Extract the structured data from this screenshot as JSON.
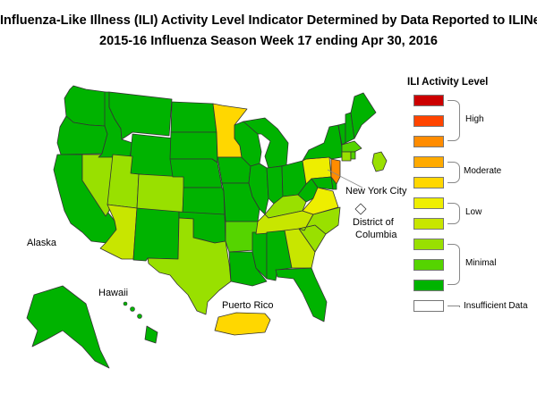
{
  "title_line1": "Influenza-Like Illness (ILI) Activity Level Indicator Determined by Data Reported to ILINet",
  "title_line2": "2015-16  Influenza Season Week  17 ending Apr 30, 2016",
  "legend": {
    "title": "ILI Activity Level",
    "levels": [
      {
        "level": 10,
        "color": "#cc0000"
      },
      {
        "level": 9,
        "color": "#ff4400"
      },
      {
        "level": 8,
        "color": "#ff8c00"
      },
      {
        "level": 7,
        "color": "#ffaa00"
      },
      {
        "level": 6,
        "color": "#ffd700"
      },
      {
        "level": 5,
        "color": "#eeee00"
      },
      {
        "level": 4,
        "color": "#c8e600"
      },
      {
        "level": 3,
        "color": "#99e000"
      },
      {
        "level": 2,
        "color": "#55d400"
      },
      {
        "level": 1,
        "color": "#00b300"
      },
      {
        "level": 0,
        "color": "#ffffff"
      }
    ],
    "groups": {
      "high": "High",
      "moderate": "Moderate",
      "low": "Low",
      "minimal": "Minimal",
      "insufficient": "Insufficient Data"
    }
  },
  "map_labels": {
    "alaska": "Alaska",
    "hawaii": "Hawaii",
    "puerto_rico": "Puerto Rico",
    "nyc": "New York City",
    "dc_line1": "District of",
    "dc_line2": "Columbia"
  },
  "regions": [
    {
      "name": "Minnesota",
      "level": 6
    },
    {
      "name": "Pennsylvania",
      "level": 5
    },
    {
      "name": "New Jersey",
      "level": 8
    },
    {
      "name": "Virginia",
      "level": 5
    },
    {
      "name": "Puerto Rico",
      "level": 6
    },
    {
      "name": "Nevada",
      "level": 3
    },
    {
      "name": "Utah",
      "level": 3
    },
    {
      "name": "Colorado",
      "level": 3
    },
    {
      "name": "Arizona",
      "level": 4
    },
    {
      "name": "Texas",
      "level": 3
    },
    {
      "name": "Georgia",
      "level": 4
    },
    {
      "name": "South Carolina",
      "level": 3
    },
    {
      "name": "North Carolina",
      "level": 3
    },
    {
      "name": "Tennessee",
      "level": 4
    },
    {
      "name": "Kentucky",
      "level": 3
    },
    {
      "name": "Arkansas",
      "level": 2
    },
    {
      "name": "Connecticut",
      "level": 3
    },
    {
      "name": "Massachusetts",
      "level": 2
    },
    {
      "name": "Rhode Island",
      "level": 2
    },
    {
      "name": "New York City",
      "level": 3
    },
    {
      "name": "District of Columbia",
      "level": 0
    },
    {
      "name": "Washington",
      "level": 1
    },
    {
      "name": "Oregon",
      "level": 1
    },
    {
      "name": "California",
      "level": 1
    },
    {
      "name": "Idaho",
      "level": 1
    },
    {
      "name": "Montana",
      "level": 1
    },
    {
      "name": "Wyoming",
      "level": 1
    },
    {
      "name": "North Dakota",
      "level": 1
    },
    {
      "name": "South Dakota",
      "level": 1
    },
    {
      "name": "Nebraska",
      "level": 1
    },
    {
      "name": "Kansas",
      "level": 1
    },
    {
      "name": "Oklahoma",
      "level": 1
    },
    {
      "name": "New Mexico",
      "level": 1
    },
    {
      "name": "Iowa",
      "level": 1
    },
    {
      "name": "Missouri",
      "level": 1
    },
    {
      "name": "Louisiana",
      "level": 1
    },
    {
      "name": "Mississippi",
      "level": 1
    },
    {
      "name": "Alabama",
      "level": 1
    },
    {
      "name": "Florida",
      "level": 1
    },
    {
      "name": "Wisconsin",
      "level": 1
    },
    {
      "name": "Illinois",
      "level": 1
    },
    {
      "name": "Michigan",
      "level": 1
    },
    {
      "name": "Indiana",
      "level": 1
    },
    {
      "name": "Ohio",
      "level": 1
    },
    {
      "name": "West Virginia",
      "level": 1
    },
    {
      "name": "Maryland",
      "level": 1
    },
    {
      "name": "Delaware",
      "level": 1
    },
    {
      "name": "New York",
      "level": 1
    },
    {
      "name": "Vermont",
      "level": 1
    },
    {
      "name": "New Hampshire",
      "level": 1
    },
    {
      "name": "Maine",
      "level": 1
    },
    {
      "name": "Alaska",
      "level": 1
    },
    {
      "name": "Hawaii",
      "level": 1
    }
  ]
}
